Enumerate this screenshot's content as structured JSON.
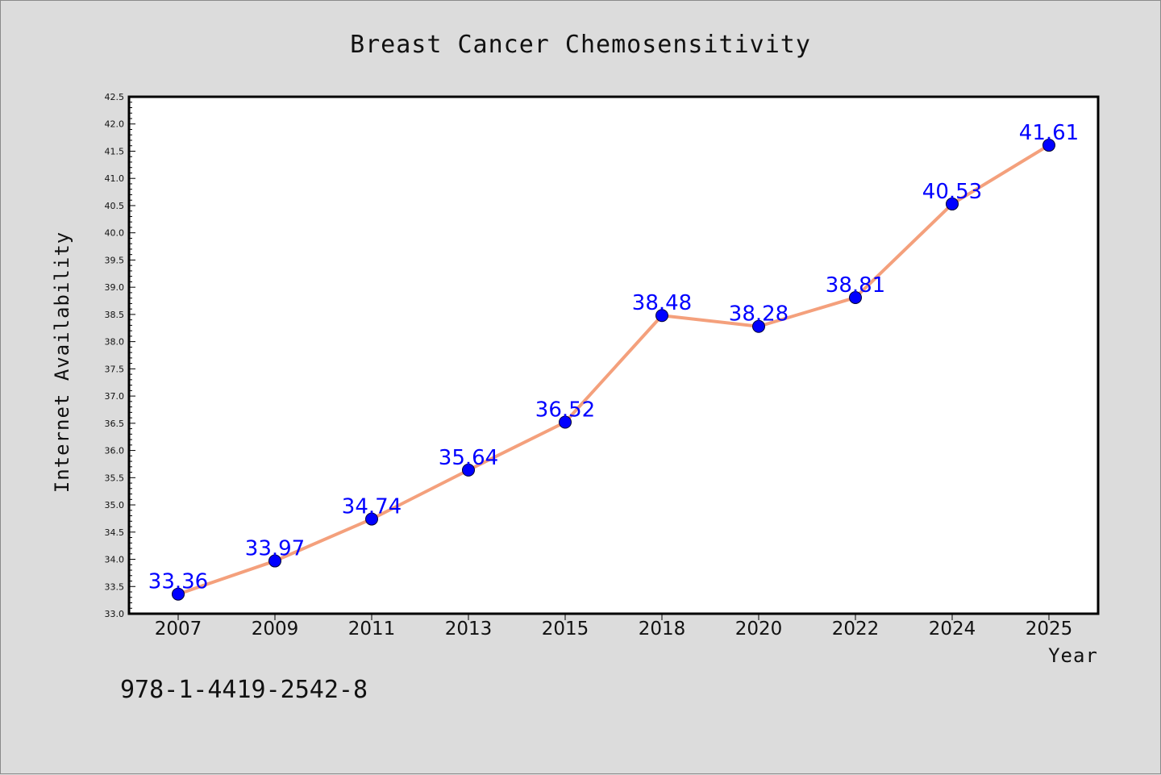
{
  "chart_data": {
    "type": "line",
    "title": "Breast Cancer Chemosensitivity",
    "xlabel": "Year",
    "ylabel": "Internet Availability",
    "categories": [
      "2007",
      "2009",
      "2011",
      "2013",
      "2015",
      "2018",
      "2020",
      "2022",
      "2024",
      "2025"
    ],
    "series": [
      {
        "values": [
          33.36,
          33.97,
          34.74,
          35.64,
          36.52,
          38.48,
          38.28,
          38.81,
          40.53,
          41.61
        ],
        "data_labels": [
          "33.36",
          "33.97",
          "34.74",
          "35.64",
          "36.52",
          "38.48",
          "38.28",
          "38.81",
          "40.53",
          "41.61"
        ]
      }
    ],
    "ylim": [
      33.0,
      42.5
    ],
    "yticks": [
      "33.0",
      "33.5",
      "34.0",
      "34.5",
      "35.0",
      "35.5",
      "36.0",
      "36.5",
      "37.0",
      "37.5",
      "38.0",
      "38.5",
      "39.0",
      "39.5",
      "40.0",
      "40.5",
      "41.0",
      "41.5",
      "42.0",
      "42.5"
    ],
    "grid": false,
    "line_color": "#f4a07c",
    "marker_color": "#0000ff",
    "label_color": "#0000ff"
  },
  "footer": {
    "isbn": "978-1-4419-2542-8"
  }
}
